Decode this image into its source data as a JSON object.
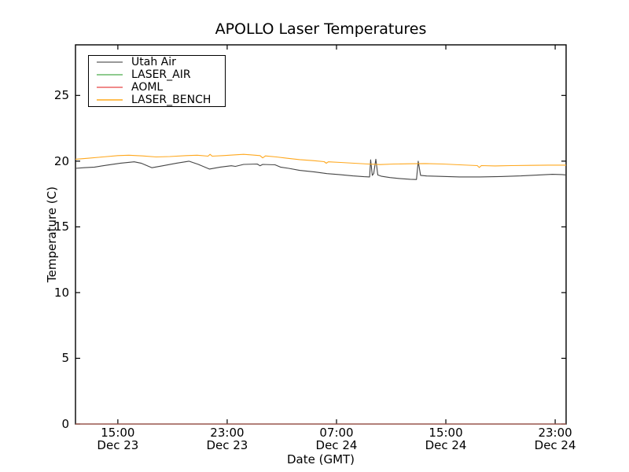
{
  "chart_data": {
    "type": "line",
    "title": "APOLLO Laser Temperatures",
    "xlabel": "Date (GMT)",
    "ylabel": "Temperature (C)",
    "x_unit": "hours since Dec 23 00:00 GMT",
    "xlim": [
      11.9,
      47.8
    ],
    "ylim": [
      0,
      28.85
    ],
    "grid": false,
    "legend_position": "upper left",
    "frame_color": "#000000",
    "background": "#ffffff",
    "yticks": [
      0,
      5,
      10,
      15,
      20,
      25
    ],
    "xticks": [
      {
        "value": 15,
        "time": "15:00",
        "date": "Dec 23"
      },
      {
        "value": 23,
        "time": "23:00",
        "date": "Dec 23"
      },
      {
        "value": 31,
        "time": "07:00",
        "date": "Dec 24"
      },
      {
        "value": 39,
        "time": "15:00",
        "date": "Dec 24"
      },
      {
        "value": 47,
        "time": "23:00",
        "date": "Dec 24"
      }
    ],
    "series": [
      {
        "name": "Utah Air",
        "color": "#454545",
        "legend_color": "#999999",
        "opacity": 1,
        "points": [
          [
            11.9,
            19.45
          ],
          [
            12.5,
            19.5
          ],
          [
            13.3,
            19.55
          ],
          [
            14.2,
            19.7
          ],
          [
            15.2,
            19.85
          ],
          [
            16.2,
            19.95
          ],
          [
            16.7,
            19.85
          ],
          [
            17.5,
            19.5
          ],
          [
            18.3,
            19.65
          ],
          [
            19.3,
            19.85
          ],
          [
            20.2,
            20.0
          ],
          [
            20.9,
            19.75
          ],
          [
            21.7,
            19.4
          ],
          [
            22.5,
            19.55
          ],
          [
            23.3,
            19.65
          ],
          [
            23.6,
            19.6
          ],
          [
            24.2,
            19.75
          ],
          [
            25.2,
            19.78
          ],
          [
            25.4,
            19.65
          ],
          [
            25.6,
            19.75
          ],
          [
            26.5,
            19.72
          ],
          [
            26.9,
            19.55
          ],
          [
            27.5,
            19.45
          ],
          [
            28.3,
            19.3
          ],
          [
            29.4,
            19.18
          ],
          [
            30.3,
            19.05
          ],
          [
            31.2,
            18.98
          ],
          [
            32.2,
            18.88
          ],
          [
            33.0,
            18.82
          ],
          [
            33.42,
            18.8
          ],
          [
            33.5,
            20.1
          ],
          [
            33.62,
            18.92
          ],
          [
            33.72,
            19.05
          ],
          [
            33.88,
            20.15
          ],
          [
            34.02,
            18.95
          ],
          [
            34.3,
            18.85
          ],
          [
            34.9,
            18.75
          ],
          [
            35.6,
            18.68
          ],
          [
            36.4,
            18.62
          ],
          [
            36.85,
            18.6
          ],
          [
            36.98,
            20.0
          ],
          [
            37.15,
            18.92
          ],
          [
            37.6,
            18.87
          ],
          [
            38.6,
            18.84
          ],
          [
            40.0,
            18.8
          ],
          [
            41.5,
            18.8
          ],
          [
            43.0,
            18.83
          ],
          [
            44.5,
            18.88
          ],
          [
            45.8,
            18.95
          ],
          [
            46.8,
            19.0
          ],
          [
            47.5,
            18.98
          ],
          [
            47.8,
            18.95
          ]
        ]
      },
      {
        "name": "LASER_AIR",
        "color": "#55b555",
        "legend_color": "#8fcb8f",
        "opacity": 1,
        "points": [
          [
            11.9,
            0
          ],
          [
            47.8,
            0
          ]
        ]
      },
      {
        "name": "AOML",
        "color": "#e05a5a",
        "legend_color": "#f08a8a",
        "opacity": 0.85,
        "points": [
          [
            11.9,
            0
          ],
          [
            47.8,
            0
          ]
        ]
      },
      {
        "name": "LASER_BENCH",
        "color": "#ffa81e",
        "legend_color": "#ffbf55",
        "opacity": 1,
        "points": [
          [
            11.9,
            20.15
          ],
          [
            12.8,
            20.22
          ],
          [
            13.9,
            20.32
          ],
          [
            15.0,
            20.42
          ],
          [
            15.8,
            20.45
          ],
          [
            16.8,
            20.4
          ],
          [
            17.8,
            20.32
          ],
          [
            18.8,
            20.35
          ],
          [
            20.0,
            20.42
          ],
          [
            20.8,
            20.45
          ],
          [
            21.6,
            20.38
          ],
          [
            21.75,
            20.52
          ],
          [
            21.9,
            20.38
          ],
          [
            22.7,
            20.42
          ],
          [
            23.6,
            20.48
          ],
          [
            24.2,
            20.52
          ],
          [
            24.7,
            20.48
          ],
          [
            25.4,
            20.42
          ],
          [
            25.6,
            20.25
          ],
          [
            25.8,
            20.4
          ],
          [
            26.6,
            20.32
          ],
          [
            27.4,
            20.22
          ],
          [
            28.3,
            20.12
          ],
          [
            29.3,
            20.04
          ],
          [
            30.1,
            19.96
          ],
          [
            30.25,
            19.84
          ],
          [
            30.4,
            19.95
          ],
          [
            31.3,
            19.9
          ],
          [
            32.3,
            19.84
          ],
          [
            33.3,
            19.78
          ],
          [
            34.2,
            19.74
          ],
          [
            35.2,
            19.78
          ],
          [
            36.3,
            19.8
          ],
          [
            37.5,
            19.82
          ],
          [
            38.8,
            19.78
          ],
          [
            40.0,
            19.72
          ],
          [
            41.3,
            19.66
          ],
          [
            41.45,
            19.52
          ],
          [
            41.6,
            19.66
          ],
          [
            42.6,
            19.64
          ],
          [
            43.8,
            19.66
          ],
          [
            45.2,
            19.68
          ],
          [
            46.5,
            19.7
          ],
          [
            47.8,
            19.7
          ]
        ]
      }
    ]
  }
}
